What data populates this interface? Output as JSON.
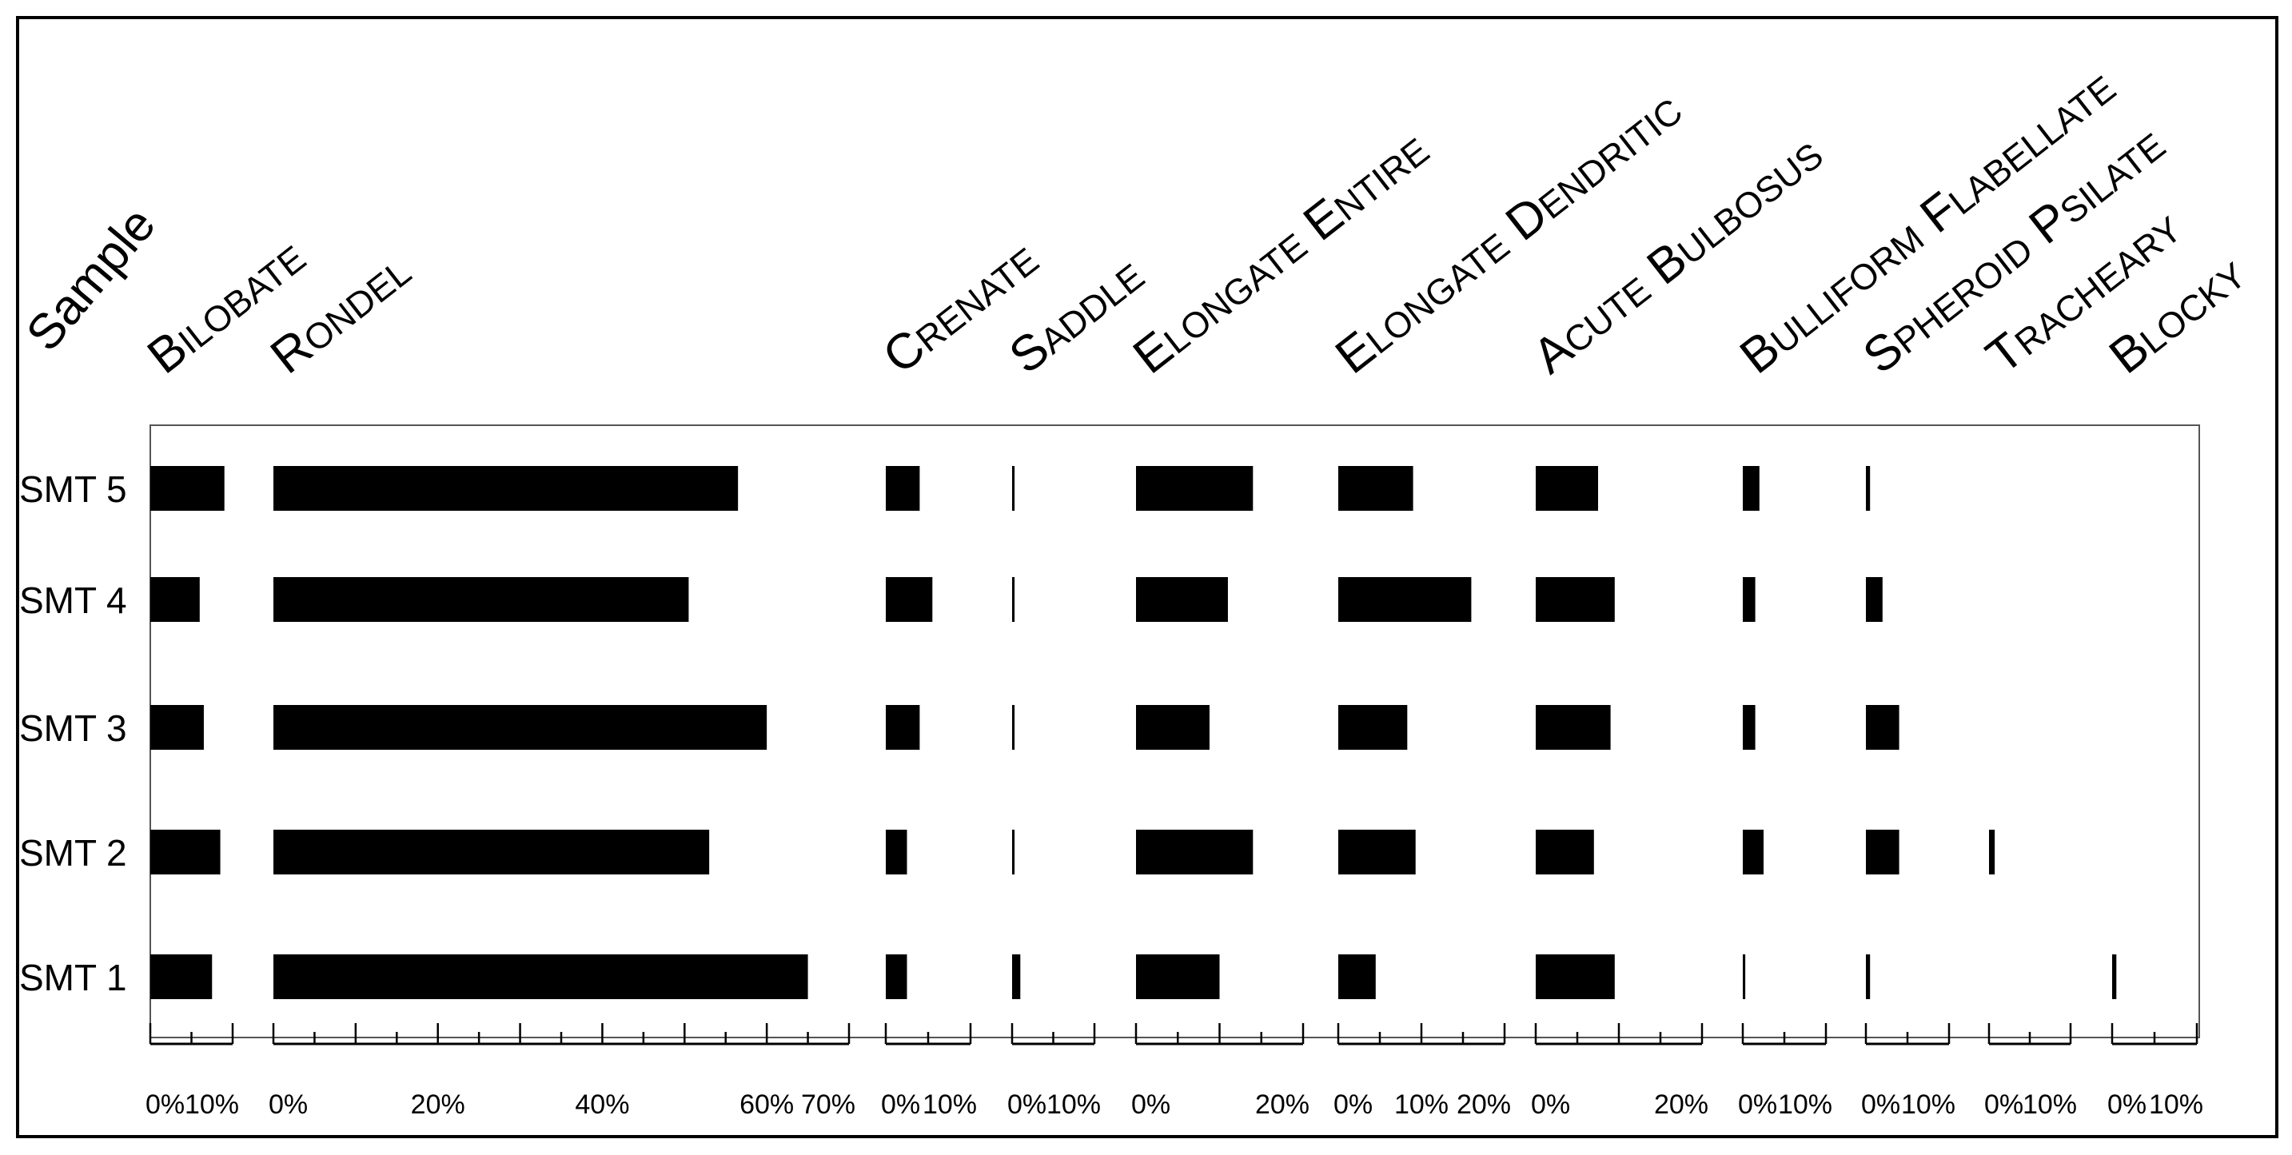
{
  "chart_data": {
    "type": "bar",
    "orientation": "horizontal",
    "layout": "small-multiples",
    "row_header": "Sample",
    "rows": [
      "SMT 5",
      "SMT 4",
      "SMT 3",
      "SMT 2",
      "SMT 1"
    ],
    "grid": false,
    "value_unit": "%",
    "panels": [
      {
        "name": "Bilobate",
        "ticks": [
          "0%",
          "10%"
        ],
        "xlim": [
          0,
          10
        ],
        "values": {
          "SMT 5": 9,
          "SMT 4": 6,
          "SMT 3": 6.5,
          "SMT 2": 8.5,
          "SMT 1": 7.5
        }
      },
      {
        "name": "Rondel",
        "ticks": [
          "0%",
          "20%",
          "40%",
          "60%",
          "70%"
        ],
        "xlim": [
          0,
          70
        ],
        "values": {
          "SMT 5": 56.5,
          "SMT 4": 50.5,
          "SMT 3": 60,
          "SMT 2": 53,
          "SMT 1": 65
        }
      },
      {
        "name": "Crenate",
        "ticks": [
          "0%",
          "10%"
        ],
        "xlim": [
          0,
          10
        ],
        "values": {
          "SMT 5": 4,
          "SMT 4": 5.5,
          "SMT 3": 4,
          "SMT 2": 2.5,
          "SMT 1": 2.5
        }
      },
      {
        "name": "Saddle",
        "ticks": [
          "0%",
          "10%"
        ],
        "xlim": [
          0,
          10
        ],
        "values": {
          "SMT 5": 0.3,
          "SMT 4": 0.3,
          "SMT 3": 0.3,
          "SMT 2": 0.3,
          "SMT 1": 1
        }
      },
      {
        "name": "Elongate entire",
        "ticks": [
          "0%",
          "20%"
        ],
        "xlim": [
          0,
          20
        ],
        "values": {
          "SMT 5": 14,
          "SMT 4": 11,
          "SMT 3": 8.8,
          "SMT 2": 14,
          "SMT 1": 10
        }
      },
      {
        "name": "Elongate dendritic",
        "ticks": [
          "0%",
          "10%",
          "20%"
        ],
        "xlim": [
          0,
          20
        ],
        "values": {
          "SMT 5": 9,
          "SMT 4": 16,
          "SMT 3": 8.3,
          "SMT 2": 9.3,
          "SMT 1": 4.5
        }
      },
      {
        "name": "Acute bulbosus",
        "ticks": [
          "0%",
          "20%"
        ],
        "xlim": [
          0,
          20
        ],
        "values": {
          "SMT 5": 7.5,
          "SMT 4": 9.5,
          "SMT 3": 9,
          "SMT 2": 7,
          "SMT 1": 9.5
        }
      },
      {
        "name": "Bulliform flabellate",
        "ticks": [
          "0%",
          "10%"
        ],
        "xlim": [
          0,
          10
        ],
        "values": {
          "SMT 5": 2,
          "SMT 4": 1.5,
          "SMT 3": 1.5,
          "SMT 2": 2.5,
          "SMT 1": 0.3
        }
      },
      {
        "name": "Spheroid psilate",
        "ticks": [
          "0%",
          "10%"
        ],
        "xlim": [
          0,
          10
        ],
        "values": {
          "SMT 5": 0.5,
          "SMT 4": 2,
          "SMT 3": 4,
          "SMT 2": 4,
          "SMT 1": 0.5
        }
      },
      {
        "name": "Tracheary",
        "ticks": [
          "0%",
          "10%"
        ],
        "xlim": [
          0,
          10
        ],
        "values": {
          "SMT 5": 0,
          "SMT 4": 0,
          "SMT 3": 0,
          "SMT 2": 0.7,
          "SMT 1": 0
        }
      },
      {
        "name": "Blocky",
        "ticks": [
          "0%",
          "10%"
        ],
        "xlim": [
          0,
          10
        ],
        "values": {
          "SMT 5": 0,
          "SMT 4": 0,
          "SMT 3": 0,
          "SMT 2": 0,
          "SMT 1": 0.5
        }
      }
    ]
  }
}
